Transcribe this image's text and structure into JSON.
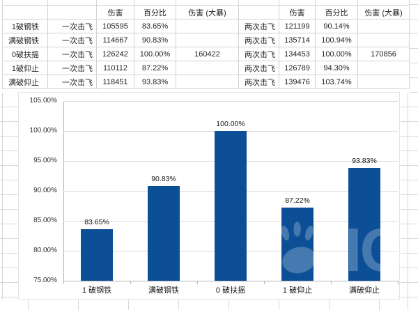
{
  "table": {
    "headers": {
      "damage": "伤害",
      "percent": "百分比",
      "damage_crit": "伤害 (大暴)"
    },
    "rows": [
      {
        "label": "1破钢铁",
        "hit1": "一次击飞",
        "dmg1": "105595",
        "pct1": "83.65%",
        "crit1": "",
        "hit2": "两次击飞",
        "dmg2": "121199",
        "pct2": "90.14%",
        "crit2": ""
      },
      {
        "label": "满破钢铁",
        "hit1": "一次击飞",
        "dmg1": "114667",
        "pct1": "90.83%",
        "crit1": "",
        "hit2": "两次击飞",
        "dmg2": "135714",
        "pct2": "100.94%",
        "crit2": ""
      },
      {
        "label": "0破扶摇",
        "hit1": "一次击飞",
        "dmg1": "126242",
        "pct1": "100.00%",
        "crit1": "160422",
        "hit2": "两次击飞",
        "dmg2": "134453",
        "pct2": "100.00%",
        "crit2": "170856"
      },
      {
        "label": "1破仰止",
        "hit1": "一次击飞",
        "dmg1": "110112",
        "pct1": "87.22%",
        "crit1": "",
        "hit2": "两次击飞",
        "dmg2": "126789",
        "pct2": "94.30%",
        "crit2": ""
      },
      {
        "label": "满破仰止",
        "hit1": "一次击飞",
        "dmg1": "118451",
        "pct1": "93.83%",
        "crit1": "",
        "hit2": "两次击飞",
        "dmg2": "139476",
        "pct2": "103.74%",
        "crit2": ""
      }
    ]
  },
  "chart_data": {
    "type": "bar",
    "title": "",
    "xlabel": "",
    "ylabel": "",
    "categories": [
      "1 破钢铁",
      "满破钢铁",
      "0 破扶摇",
      "1 破仰止",
      "满破仰止"
    ],
    "values": [
      83.65,
      90.83,
      100.0,
      87.22,
      93.83
    ],
    "data_labels": [
      "83.65%",
      "90.83%",
      "100.00%",
      "87.22%",
      "93.83%"
    ],
    "ylim": [
      75,
      105
    ],
    "yticks": [
      105,
      100,
      95,
      90,
      85,
      80,
      75
    ],
    "ytick_labels": [
      "105.00%",
      "100.00%",
      "95.00%",
      "90.00%",
      "85.00%",
      "80.00%",
      "75.00%"
    ],
    "grid": "horizontal",
    "legend": "none",
    "bar_color": "#0d4f96",
    "watermark_text": "IG"
  },
  "colors": {
    "bar": "#0d4f96",
    "grid": "#d8d8d8",
    "chart_gridline": "#dadada",
    "axis": "#b3b3b3",
    "text": "#1f1f1f"
  }
}
